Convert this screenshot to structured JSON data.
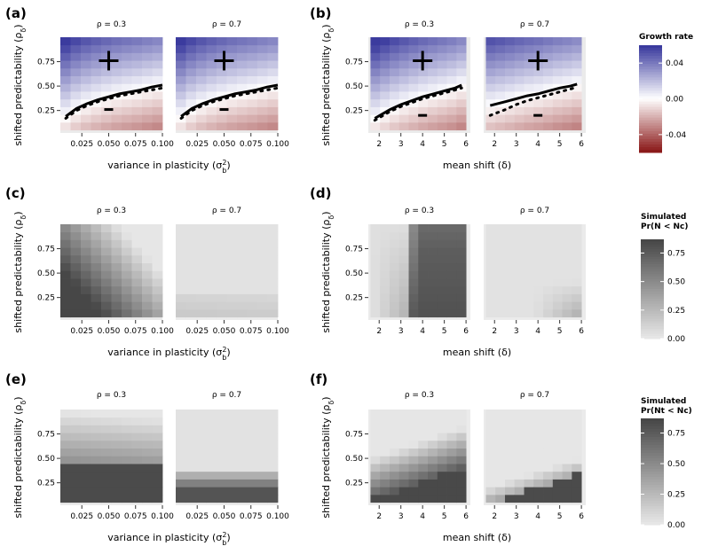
{
  "figure": {
    "legends": [
      {
        "title_lines": [
          "Growth rate"
        ],
        "scale": "diverging",
        "low_color": "#8b1a1a",
        "mid_color": "#ffffff",
        "high_color": "#3b3b9e",
        "range": [
          -0.06,
          0.06
        ],
        "ticks": [
          -0.04,
          0.0,
          0.04
        ],
        "tick_labels": [
          "-0.04",
          "0.00",
          "0.04"
        ]
      },
      {
        "title_lines": [
          "Simulated",
          "Pr(N < Nc)"
        ],
        "scale": "gray",
        "low_color": "#e6e6e6",
        "high_color": "#474747",
        "range": [
          0,
          0.87
        ],
        "ticks": [
          0.0,
          0.25,
          0.5,
          0.75
        ],
        "tick_labels": [
          "0.00",
          "0.25",
          "0.50",
          "0.75"
        ]
      },
      {
        "title_lines": [
          "Simulated",
          "Pr(Nt < Nc)"
        ],
        "scale": "gray",
        "low_color": "#e6e6e6",
        "high_color": "#474747",
        "range": [
          0,
          0.87
        ],
        "ticks": [
          0.0,
          0.25,
          0.5,
          0.75
        ],
        "tick_labels": [
          "0.00",
          "0.25",
          "0.50",
          "0.75"
        ]
      }
    ],
    "plus_symbol": "+",
    "minus_symbol": "-"
  },
  "chart_data": [
    {
      "id": "a",
      "label": "(a)",
      "type": "heatmap",
      "fill": "growth",
      "legend": 0,
      "facets": [
        "ρ = 0.3",
        "ρ = 0.7"
      ],
      "xlabel": "variance in plasticity (σ_b^2)",
      "ylabel": "shifted predictability (ρ_δ)",
      "xlim": [
        0.005,
        0.1
      ],
      "ylim": [
        0.02,
        1.0
      ],
      "xticks": [
        0.025,
        0.05,
        0.075,
        0.1
      ],
      "xtick_labels": [
        "0.025",
        "0.050",
        "0.075",
        "0.100"
      ],
      "yticks": [
        0.25,
        0.5,
        0.75
      ],
      "ytick_labels": [
        "0.25",
        "0.50",
        "0.75"
      ],
      "x_cells": 10,
      "y_cells": 12,
      "boundary_solid": [
        [
          [
            0.01,
            0.19
          ],
          [
            0.02,
            0.27
          ],
          [
            0.03,
            0.32
          ],
          [
            0.04,
            0.36
          ],
          [
            0.05,
            0.39
          ],
          [
            0.06,
            0.42
          ],
          [
            0.07,
            0.44
          ],
          [
            0.08,
            0.46
          ],
          [
            0.09,
            0.49
          ],
          [
            0.1,
            0.51
          ]
        ],
        [
          [
            0.01,
            0.19
          ],
          [
            0.02,
            0.27
          ],
          [
            0.03,
            0.32
          ],
          [
            0.04,
            0.36
          ],
          [
            0.05,
            0.39
          ],
          [
            0.06,
            0.42
          ],
          [
            0.07,
            0.44
          ],
          [
            0.08,
            0.46
          ],
          [
            0.09,
            0.49
          ],
          [
            0.1,
            0.51
          ]
        ]
      ],
      "boundary_dotted": [
        [
          [
            0.01,
            0.17
          ],
          [
            0.02,
            0.25
          ],
          [
            0.03,
            0.3
          ],
          [
            0.04,
            0.34
          ],
          [
            0.05,
            0.37
          ],
          [
            0.06,
            0.4
          ],
          [
            0.07,
            0.42
          ],
          [
            0.08,
            0.44
          ],
          [
            0.09,
            0.46
          ],
          [
            0.1,
            0.48
          ]
        ],
        [
          [
            0.01,
            0.17
          ],
          [
            0.02,
            0.25
          ],
          [
            0.03,
            0.3
          ],
          [
            0.04,
            0.34
          ],
          [
            0.05,
            0.37
          ],
          [
            0.06,
            0.4
          ],
          [
            0.07,
            0.42
          ],
          [
            0.08,
            0.44
          ],
          [
            0.09,
            0.46
          ],
          [
            0.1,
            0.48
          ]
        ]
      ],
      "plus_pos": [
        0.05,
        0.76
      ],
      "minus_pos": [
        0.05,
        0.26
      ]
    },
    {
      "id": "b",
      "label": "(b)",
      "type": "heatmap",
      "fill": "growth",
      "legend": 0,
      "facets": [
        "ρ = 0.3",
        "ρ = 0.7"
      ],
      "xlabel": "mean shift (δ)",
      "ylabel": "shifted predictability (ρ_δ)",
      "xlim": [
        1.5,
        6.2
      ],
      "ylim": [
        0.02,
        1.0
      ],
      "xticks": [
        2,
        3,
        4,
        5,
        6
      ],
      "xtick_labels": [
        "2",
        "3",
        "4",
        "5",
        "6"
      ],
      "yticks": [
        0.25,
        0.5,
        0.75
      ],
      "ytick_labels": [
        "0.25",
        "0.50",
        "0.75"
      ],
      "x_cells": 10,
      "y_cells": 12,
      "boundary_solid": [
        [
          [
            1.8,
            0.17
          ],
          [
            2.5,
            0.26
          ],
          [
            3,
            0.31
          ],
          [
            3.5,
            0.35
          ],
          [
            4,
            0.39
          ],
          [
            4.5,
            0.42
          ],
          [
            5,
            0.45
          ],
          [
            5.5,
            0.48
          ],
          [
            5.8,
            0.51
          ]
        ],
        [
          [
            1.8,
            0.3
          ],
          [
            2.5,
            0.34
          ],
          [
            3,
            0.37
          ],
          [
            3.5,
            0.4
          ],
          [
            4,
            0.42
          ],
          [
            4.5,
            0.45
          ],
          [
            5,
            0.48
          ],
          [
            5.5,
            0.5
          ],
          [
            5.8,
            0.52
          ]
        ]
      ],
      "boundary_dotted": [
        [
          [
            1.8,
            0.15
          ],
          [
            2.5,
            0.24
          ],
          [
            3,
            0.29
          ],
          [
            3.5,
            0.33
          ],
          [
            4,
            0.37
          ],
          [
            4.5,
            0.4
          ],
          [
            5,
            0.43
          ],
          [
            5.5,
            0.46
          ],
          [
            5.8,
            0.48
          ]
        ],
        [
          [
            1.8,
            0.2
          ],
          [
            2.5,
            0.26
          ],
          [
            3,
            0.31
          ],
          [
            3.5,
            0.35
          ],
          [
            4,
            0.38
          ],
          [
            4.5,
            0.41
          ],
          [
            5,
            0.44
          ],
          [
            5.5,
            0.47
          ],
          [
            5.8,
            0.49
          ]
        ]
      ],
      "plus_pos": [
        4,
        0.76
      ],
      "minus_pos": [
        4,
        0.2
      ]
    },
    {
      "id": "c",
      "label": "(c)",
      "type": "heatmap",
      "fill": "prob",
      "legend": 1,
      "facets": [
        "ρ = 0.3",
        "ρ = 0.7"
      ],
      "xlabel": "variance in plasticity (σ_b^2)",
      "ylabel": "shifted predictability (ρ_δ)",
      "xlim": [
        0.005,
        0.1
      ],
      "ylim": [
        0.02,
        1.0
      ],
      "xticks": [
        0.025,
        0.05,
        0.075,
        0.1
      ],
      "xtick_labels": [
        "0.025",
        "0.050",
        "0.075",
        "0.100"
      ],
      "yticks": [
        0.25,
        0.5,
        0.75
      ],
      "ytick_labels": [
        "0.25",
        "0.50",
        "0.75"
      ],
      "x_cells": 10,
      "y_cells": 12,
      "pattern": [
        "c03",
        "c07"
      ]
    },
    {
      "id": "d",
      "label": "(d)",
      "type": "heatmap",
      "fill": "prob",
      "legend": 1,
      "facets": [
        "ρ = 0.3",
        "ρ = 0.7"
      ],
      "xlabel": "mean shift (δ)",
      "ylabel": "shifted predictability (ρ_δ)",
      "xlim": [
        1.5,
        6.2
      ],
      "ylim": [
        0.02,
        1.0
      ],
      "xticks": [
        2,
        3,
        4,
        5,
        6
      ],
      "xtick_labels": [
        "2",
        "3",
        "4",
        "5",
        "6"
      ],
      "yticks": [
        0.25,
        0.5,
        0.75
      ],
      "ytick_labels": [
        "0.25",
        "0.50",
        "0.75"
      ],
      "x_cells": 10,
      "y_cells": 12,
      "pattern": [
        "d03",
        "d07"
      ]
    },
    {
      "id": "e",
      "label": "(e)",
      "type": "heatmap",
      "fill": "prob",
      "legend": 2,
      "facets": [
        "ρ = 0.3",
        "ρ = 0.7"
      ],
      "xlabel": "variance in plasticity (σ_b^2)",
      "ylabel": "shifted predictability (ρ_δ)",
      "xlim": [
        0.005,
        0.1
      ],
      "ylim": [
        0.02,
        1.0
      ],
      "xticks": [
        0.025,
        0.05,
        0.075,
        0.1
      ],
      "xtick_labels": [
        "0.025",
        "0.050",
        "0.075",
        "0.100"
      ],
      "yticks": [
        0.25,
        0.5,
        0.75
      ],
      "ytick_labels": [
        "0.25",
        "0.50",
        "0.75"
      ],
      "x_cells": 10,
      "y_cells": 12,
      "pattern": [
        "e03",
        "e07"
      ]
    },
    {
      "id": "f",
      "label": "(f)",
      "type": "heatmap",
      "fill": "prob",
      "legend": 2,
      "facets": [
        "ρ = 0.3",
        "ρ = 0.7"
      ],
      "xlabel": "mean shift (δ)",
      "ylabel": "shifted predictability (ρ_δ)",
      "xlim": [
        1.5,
        6.2
      ],
      "ylim": [
        0.02,
        1.0
      ],
      "xticks": [
        2,
        3,
        4,
        5,
        6
      ],
      "xtick_labels": [
        "2",
        "3",
        "4",
        "5",
        "6"
      ],
      "yticks": [
        0.25,
        0.5,
        0.75
      ],
      "ytick_labels": [
        "0.25",
        "0.50",
        "0.75"
      ],
      "x_cells": 10,
      "y_cells": 12,
      "pattern": [
        "f03",
        "f07"
      ]
    }
  ]
}
